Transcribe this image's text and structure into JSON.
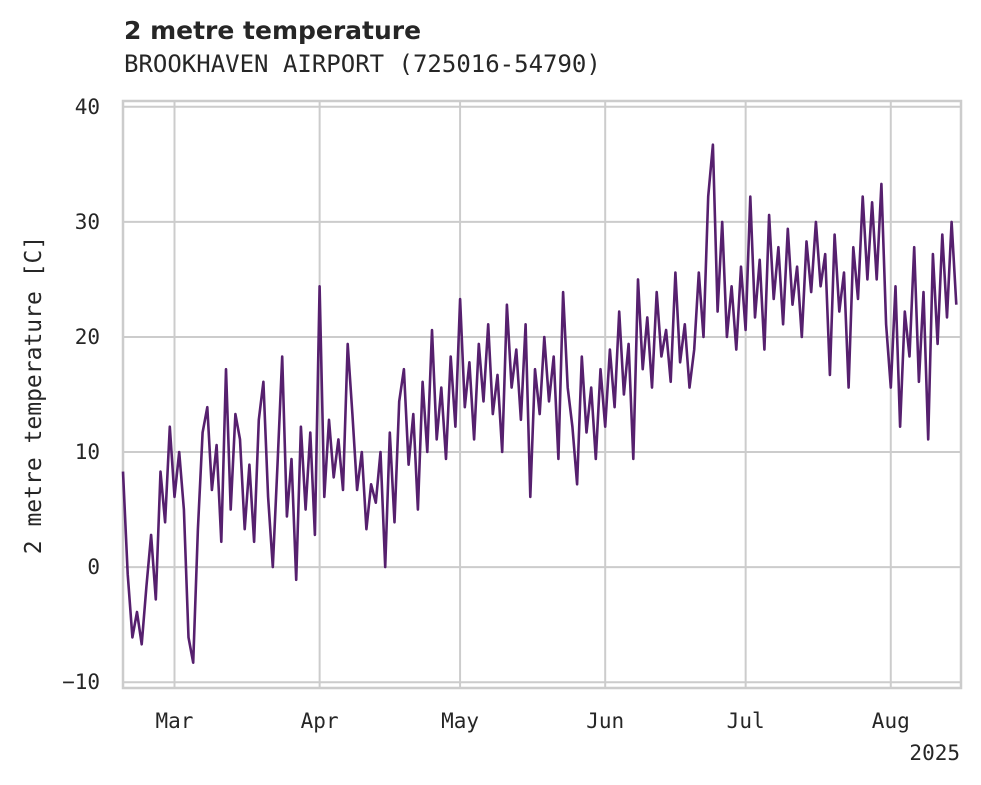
{
  "chart_data": {
    "type": "line",
    "title": "2 metre temperature",
    "subtitle": "BROOKHAVEN AIRPORT (725016-54790)",
    "ylabel": "2 metre temperature [C]",
    "xlabel": "",
    "ylim": [
      -10.5,
      40.5
    ],
    "yticks": [
      -10,
      0,
      10,
      20,
      30,
      40
    ],
    "xlim": [
      "2025-02-18",
      "2025-08-16"
    ],
    "xticks": [
      {
        "date": "2025-03-01",
        "label": "Mar"
      },
      {
        "date": "2025-04-01",
        "label": "Apr"
      },
      {
        "date": "2025-05-01",
        "label": "May"
      },
      {
        "date": "2025-06-01",
        "label": "Jun"
      },
      {
        "date": "2025-07-01",
        "label": "Jul"
      },
      {
        "date": "2025-08-01",
        "label": "Aug"
      }
    ],
    "year_label": "2025",
    "grid": true,
    "color": "#56206e",
    "series": [
      {
        "points": [
          [
            "2025-02-18",
            8.3
          ],
          [
            "2025-02-19",
            -0.6
          ],
          [
            "2025-02-20",
            -6.1
          ],
          [
            "2025-02-21",
            -3.9
          ],
          [
            "2025-02-22",
            -6.7
          ],
          [
            "2025-02-23",
            -1.7
          ],
          [
            "2025-02-24",
            2.8
          ],
          [
            "2025-02-25",
            -2.8
          ],
          [
            "2025-02-26",
            8.3
          ],
          [
            "2025-02-27",
            3.9
          ],
          [
            "2025-02-28",
            12.2
          ],
          [
            "2025-03-01",
            6.1
          ],
          [
            "2025-03-02",
            10.0
          ],
          [
            "2025-03-03",
            5.0
          ],
          [
            "2025-03-04",
            -6.1
          ],
          [
            "2025-03-05",
            -8.3
          ],
          [
            "2025-03-06",
            3.3
          ],
          [
            "2025-03-07",
            11.7
          ],
          [
            "2025-03-08",
            13.9
          ],
          [
            "2025-03-09",
            6.7
          ],
          [
            "2025-03-10",
            10.6
          ],
          [
            "2025-03-11",
            2.2
          ],
          [
            "2025-03-12",
            17.2
          ],
          [
            "2025-03-13",
            5.0
          ],
          [
            "2025-03-14",
            13.3
          ],
          [
            "2025-03-15",
            11.1
          ],
          [
            "2025-03-16",
            3.3
          ],
          [
            "2025-03-17",
            8.9
          ],
          [
            "2025-03-18",
            2.2
          ],
          [
            "2025-03-19",
            12.8
          ],
          [
            "2025-03-20",
            16.1
          ],
          [
            "2025-03-21",
            6.1
          ],
          [
            "2025-03-22",
            0.0
          ],
          [
            "2025-03-23",
            8.9
          ],
          [
            "2025-03-24",
            18.3
          ],
          [
            "2025-03-25",
            4.4
          ],
          [
            "2025-03-26",
            9.4
          ],
          [
            "2025-03-27",
            -1.1
          ],
          [
            "2025-03-28",
            12.2
          ],
          [
            "2025-03-29",
            5.0
          ],
          [
            "2025-03-30",
            11.7
          ],
          [
            "2025-03-31",
            2.8
          ],
          [
            "2025-04-01",
            24.4
          ],
          [
            "2025-04-02",
            6.1
          ],
          [
            "2025-04-03",
            12.8
          ],
          [
            "2025-04-04",
            7.8
          ],
          [
            "2025-04-05",
            11.1
          ],
          [
            "2025-04-06",
            6.7
          ],
          [
            "2025-04-07",
            19.4
          ],
          [
            "2025-04-08",
            13.3
          ],
          [
            "2025-04-09",
            6.7
          ],
          [
            "2025-04-10",
            10.0
          ],
          [
            "2025-04-11",
            3.3
          ],
          [
            "2025-04-12",
            7.2
          ],
          [
            "2025-04-13",
            5.6
          ],
          [
            "2025-04-14",
            10.0
          ],
          [
            "2025-04-15",
            0.0
          ],
          [
            "2025-04-16",
            11.7
          ],
          [
            "2025-04-17",
            3.9
          ],
          [
            "2025-04-18",
            14.4
          ],
          [
            "2025-04-19",
            17.2
          ],
          [
            "2025-04-20",
            8.9
          ],
          [
            "2025-04-21",
            13.3
          ],
          [
            "2025-04-22",
            5.0
          ],
          [
            "2025-04-23",
            16.1
          ],
          [
            "2025-04-24",
            10.0
          ],
          [
            "2025-04-25",
            20.6
          ],
          [
            "2025-04-26",
            11.1
          ],
          [
            "2025-04-27",
            15.6
          ],
          [
            "2025-04-28",
            9.4
          ],
          [
            "2025-04-29",
            18.3
          ],
          [
            "2025-04-30",
            12.2
          ],
          [
            "2025-05-01",
            23.3
          ],
          [
            "2025-05-02",
            13.9
          ],
          [
            "2025-05-03",
            17.8
          ],
          [
            "2025-05-04",
            11.1
          ],
          [
            "2025-05-05",
            19.4
          ],
          [
            "2025-05-06",
            14.4
          ],
          [
            "2025-05-07",
            21.1
          ],
          [
            "2025-05-08",
            13.3
          ],
          [
            "2025-05-09",
            16.7
          ],
          [
            "2025-05-10",
            10.0
          ],
          [
            "2025-05-11",
            22.8
          ],
          [
            "2025-05-12",
            15.6
          ],
          [
            "2025-05-13",
            18.9
          ],
          [
            "2025-05-14",
            12.8
          ],
          [
            "2025-05-15",
            21.1
          ],
          [
            "2025-05-16",
            6.1
          ],
          [
            "2025-05-17",
            17.2
          ],
          [
            "2025-05-18",
            13.3
          ],
          [
            "2025-05-19",
            20.0
          ],
          [
            "2025-05-20",
            14.4
          ],
          [
            "2025-05-21",
            18.3
          ],
          [
            "2025-05-22",
            9.4
          ],
          [
            "2025-05-23",
            23.9
          ],
          [
            "2025-05-24",
            15.6
          ],
          [
            "2025-05-25",
            12.2
          ],
          [
            "2025-05-26",
            7.2
          ],
          [
            "2025-05-27",
            18.3
          ],
          [
            "2025-05-28",
            11.7
          ],
          [
            "2025-05-29",
            15.6
          ],
          [
            "2025-05-30",
            9.4
          ],
          [
            "2025-05-31",
            17.2
          ],
          [
            "2025-06-01",
            12.2
          ],
          [
            "2025-06-02",
            18.9
          ],
          [
            "2025-06-03",
            13.9
          ],
          [
            "2025-06-04",
            22.2
          ],
          [
            "2025-06-05",
            15.0
          ],
          [
            "2025-06-06",
            19.4
          ],
          [
            "2025-06-07",
            9.4
          ],
          [
            "2025-06-08",
            25.0
          ],
          [
            "2025-06-09",
            17.2
          ],
          [
            "2025-06-10",
            21.7
          ],
          [
            "2025-06-11",
            15.6
          ],
          [
            "2025-06-12",
            23.9
          ],
          [
            "2025-06-13",
            18.3
          ],
          [
            "2025-06-14",
            20.6
          ],
          [
            "2025-06-15",
            16.1
          ],
          [
            "2025-06-16",
            25.6
          ],
          [
            "2025-06-17",
            17.8
          ],
          [
            "2025-06-18",
            21.1
          ],
          [
            "2025-06-19",
            15.6
          ],
          [
            "2025-06-20",
            18.9
          ],
          [
            "2025-06-21",
            25.6
          ],
          [
            "2025-06-22",
            20.0
          ],
          [
            "2025-06-23",
            32.2
          ],
          [
            "2025-06-24",
            36.7
          ],
          [
            "2025-06-25",
            22.2
          ],
          [
            "2025-06-26",
            30.0
          ],
          [
            "2025-06-27",
            20.0
          ],
          [
            "2025-06-28",
            24.4
          ],
          [
            "2025-06-29",
            18.9
          ],
          [
            "2025-06-30",
            26.1
          ],
          [
            "2025-07-01",
            20.6
          ],
          [
            "2025-07-02",
            32.2
          ],
          [
            "2025-07-03",
            21.7
          ],
          [
            "2025-07-04",
            26.7
          ],
          [
            "2025-07-05",
            18.9
          ],
          [
            "2025-07-06",
            30.6
          ],
          [
            "2025-07-07",
            23.3
          ],
          [
            "2025-07-08",
            27.8
          ],
          [
            "2025-07-09",
            21.1
          ],
          [
            "2025-07-10",
            29.4
          ],
          [
            "2025-07-11",
            22.8
          ],
          [
            "2025-07-12",
            26.1
          ],
          [
            "2025-07-13",
            20.0
          ],
          [
            "2025-07-14",
            28.3
          ],
          [
            "2025-07-15",
            23.9
          ],
          [
            "2025-07-16",
            30.0
          ],
          [
            "2025-07-17",
            24.4
          ],
          [
            "2025-07-18",
            27.2
          ],
          [
            "2025-07-19",
            16.7
          ],
          [
            "2025-07-20",
            28.9
          ],
          [
            "2025-07-21",
            22.2
          ],
          [
            "2025-07-22",
            25.6
          ],
          [
            "2025-07-23",
            15.6
          ],
          [
            "2025-07-24",
            27.8
          ],
          [
            "2025-07-25",
            23.3
          ],
          [
            "2025-07-26",
            32.2
          ],
          [
            "2025-07-27",
            25.0
          ],
          [
            "2025-07-28",
            31.7
          ],
          [
            "2025-07-29",
            25.0
          ],
          [
            "2025-07-30",
            33.3
          ],
          [
            "2025-07-31",
            21.1
          ],
          [
            "2025-08-01",
            15.6
          ],
          [
            "2025-08-02",
            24.4
          ],
          [
            "2025-08-03",
            12.2
          ],
          [
            "2025-08-04",
            22.2
          ],
          [
            "2025-08-05",
            18.3
          ],
          [
            "2025-08-06",
            27.8
          ],
          [
            "2025-08-07",
            16.1
          ],
          [
            "2025-08-08",
            23.9
          ],
          [
            "2025-08-09",
            11.1
          ],
          [
            "2025-08-10",
            27.2
          ],
          [
            "2025-08-11",
            19.4
          ],
          [
            "2025-08-12",
            28.9
          ],
          [
            "2025-08-13",
            21.7
          ],
          [
            "2025-08-14",
            30.0
          ],
          [
            "2025-08-15",
            22.8
          ]
        ]
      }
    ]
  }
}
